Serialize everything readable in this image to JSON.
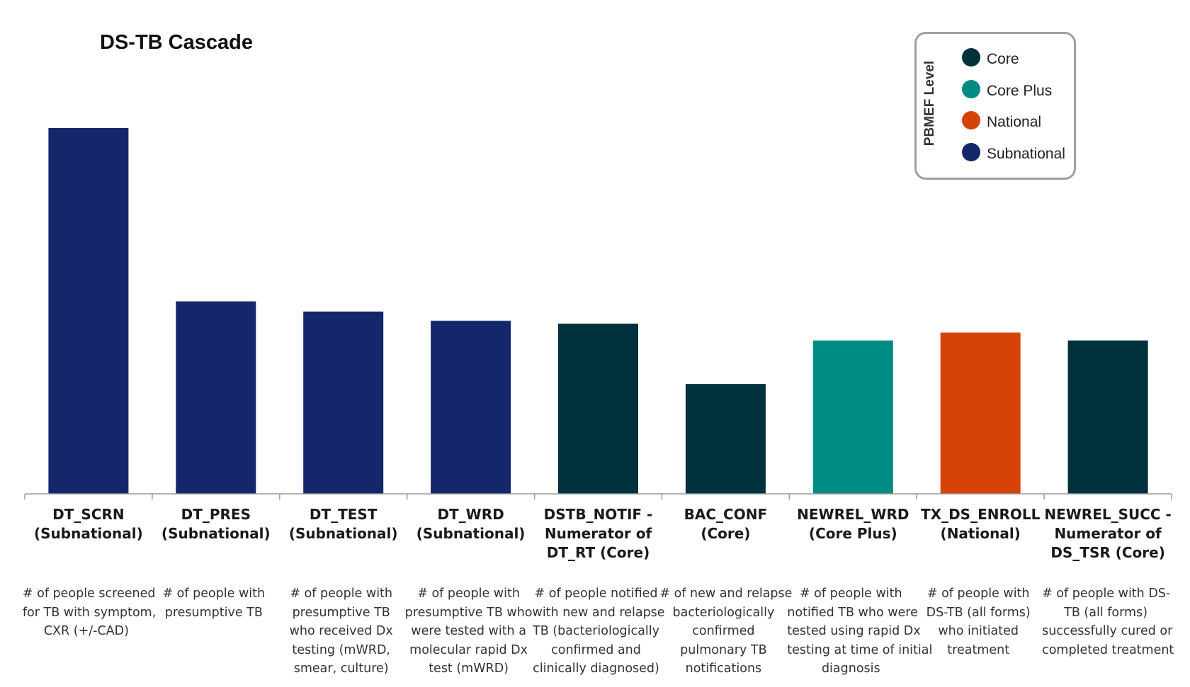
{
  "chart_data": {
    "type": "bar",
    "title": "DS-TB Cascade",
    "xlabel": "",
    "ylabel": "",
    "grid": false,
    "legend_placement": "top-right",
    "legend_title": "PBMEF Level",
    "legend": [
      {
        "name": "Core",
        "color": "#00313c"
      },
      {
        "name": "Core Plus",
        "color": "#008c84"
      },
      {
        "name": "National",
        "color": "#d74208"
      },
      {
        "name": "Subnational",
        "color": "#13276a"
      }
    ],
    "ylim": [
      0,
      100
    ],
    "categories": [
      {
        "code": [
          "DT_SCRN",
          "(Subnational)"
        ],
        "level": "Subnational",
        "value": 100,
        "description": [
          "# of people screened",
          "for TB with symptom,",
          "CXR (+/-CAD)"
        ]
      },
      {
        "code": [
          "DT_PRES",
          "(Subnational)"
        ],
        "level": "Subnational",
        "value": 52.6,
        "description": [
          "# of people with",
          "presumptive TB"
        ]
      },
      {
        "code": [
          "DT_TEST",
          "(Subnational)"
        ],
        "level": "Subnational",
        "value": 49.8,
        "description": [
          "# of people with",
          "presumptive TB",
          "who received Dx",
          "testing (mWRD,",
          "smear, culture)"
        ]
      },
      {
        "code": [
          "DT_WRD",
          "(Subnational)"
        ],
        "level": "Subnational",
        "value": 47.3,
        "description": [
          "# of people with",
          "presumptive TB who",
          "were tested with a",
          "molecular rapid Dx",
          "test (mWRD)"
        ]
      },
      {
        "code": [
          "DSTB_NOTIF -",
          "Numerator of",
          "DT_RT  (Core)"
        ],
        "level": "Core",
        "value": 46.5,
        "description": [
          "# of people notified",
          "with new and relapse",
          "TB  (bacteriologically",
          "confirmed and",
          "clinically diagnosed)"
        ]
      },
      {
        "code": [
          "BAC_CONF",
          "(Core)"
        ],
        "level": "Core",
        "value": 30.0,
        "description": [
          "# of new and relapse",
          "bacteriologically",
          "confirmed",
          "pulmonary TB",
          "notifications"
        ]
      },
      {
        "code": [
          "NEWREL_WRD",
          "(Core Plus)"
        ],
        "level": "Core Plus",
        "value": 41.9,
        "description": [
          "# of people with",
          "notified TB who were",
          "tested using rapid Dx",
          "testing at time of initial",
          "diagnosis"
        ]
      },
      {
        "code": [
          "TX_DS_ENROLL",
          "(National)"
        ],
        "level": "National",
        "value": 44.1,
        "description": [
          "# of people with",
          "DS-TB (all forms)",
          "who initiated",
          "treatment"
        ]
      },
      {
        "code": [
          "NEWREL_SUCC -",
          "Numerator of",
          "DS_TSR (Core)"
        ],
        "level": "Core",
        "value": 41.9,
        "description": [
          "# of people with DS-",
          "TB (all forms)",
          "successfully cured or",
          "completed treatment"
        ]
      }
    ]
  }
}
